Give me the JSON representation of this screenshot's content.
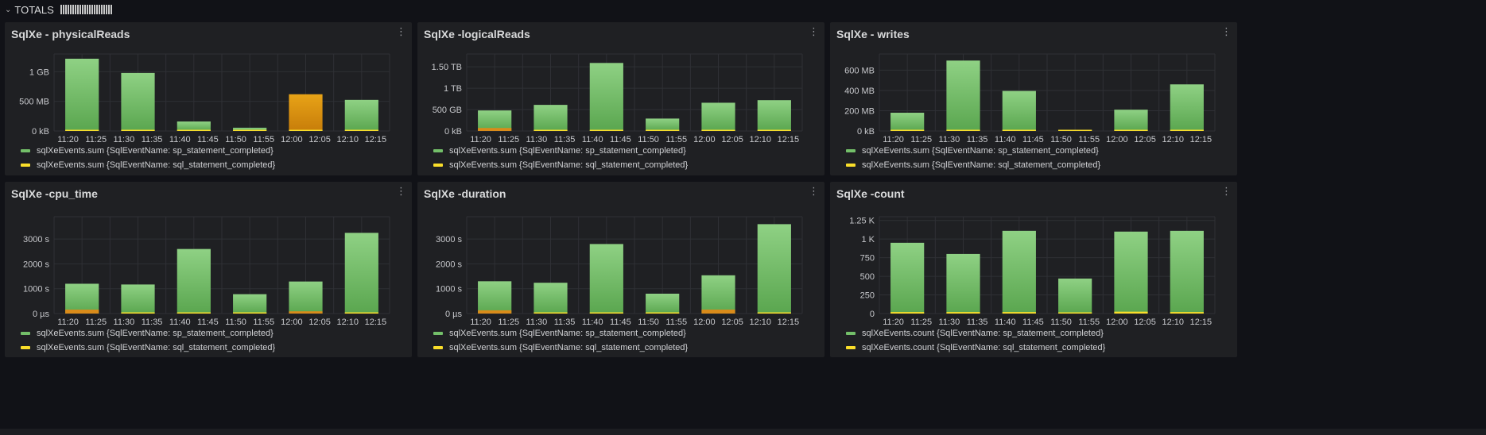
{
  "row": {
    "title": "TOTALS"
  },
  "colors": {
    "sp": "#73bf69",
    "sql": "#fade2a",
    "highlight": "#e8a317"
  },
  "panels": [
    {
      "title": "SqlXe - physicalReads",
      "ytick_labels": [
        "0 kB",
        "500 MB",
        "1 GB"
      ],
      "ytick_values": [
        0,
        500,
        1000
      ],
      "ymax": 1300,
      "xtick_labels": [
        "11:20",
        "11:25",
        "11:30",
        "11:35",
        "11:40",
        "11:45",
        "11:50",
        "11:55",
        "12:00",
        "12:05",
        "12:10",
        "12:15"
      ],
      "bars": [
        {
          "sp": 1220,
          "sql": 10
        },
        {
          "sp": 980,
          "sql": 10
        },
        {
          "sp": 160,
          "sql": 5
        },
        {
          "sp": 55,
          "sql": 3
        },
        {
          "sp": 620,
          "sql": 8,
          "highlight": true
        },
        {
          "sp": 525,
          "sql": 8
        }
      ],
      "legend": [
        {
          "label": "sqlXeEvents.sum {SqlEventName: sp_statement_completed}",
          "color": "#73bf69"
        },
        {
          "label": "sqlXeEvents.sum {SqlEventName: sql_statement_completed}",
          "color": "#fade2a"
        }
      ]
    },
    {
      "title": "SqlXe -logicalReads",
      "ytick_labels": [
        "0 kB",
        "500 GB",
        "1 TB",
        "1.50 TB"
      ],
      "ytick_values": [
        0,
        500,
        1000,
        1500
      ],
      "ymax": 1800,
      "xtick_labels": [
        "11:20",
        "11:25",
        "11:30",
        "11:35",
        "11:40",
        "11:45",
        "11:50",
        "11:55",
        "12:00",
        "12:05",
        "12:10",
        "12:15"
      ],
      "bars": [
        {
          "sp": 480,
          "sql": 70
        },
        {
          "sp": 610,
          "sql": 10
        },
        {
          "sp": 1590,
          "sql": 10
        },
        {
          "sp": 290,
          "sql": 5
        },
        {
          "sp": 660,
          "sql": 25
        },
        {
          "sp": 720,
          "sql": 10
        }
      ],
      "legend": [
        {
          "label": "sqlXeEvents.sum {SqlEventName: sp_statement_completed}",
          "color": "#73bf69"
        },
        {
          "label": "sqlXeEvents.sum {SqlEventName: sql_statement_completed}",
          "color": "#fade2a"
        }
      ]
    },
    {
      "title": "SqlXe - writes",
      "ytick_labels": [
        "0 kB",
        "200 MB",
        "400 MB",
        "600 MB"
      ],
      "ytick_values": [
        0,
        200,
        400,
        600
      ],
      "ymax": 760,
      "xtick_labels": [
        "11:20",
        "11:25",
        "11:30",
        "11:35",
        "11:40",
        "11:45",
        "11:50",
        "11:55",
        "12:00",
        "12:05",
        "12:10",
        "12:15"
      ],
      "bars": [
        {
          "sp": 180,
          "sql": 12
        },
        {
          "sp": 695,
          "sql": 12
        },
        {
          "sp": 395,
          "sql": 12
        },
        {
          "sp": 10,
          "sql": 10
        },
        {
          "sp": 210,
          "sql": 10
        },
        {
          "sp": 460,
          "sql": 12
        }
      ],
      "legend": [
        {
          "label": "sqlXeEvents.sum {SqlEventName: sp_statement_completed}",
          "color": "#73bf69"
        },
        {
          "label": "sqlXeEvents.sum {SqlEventName: sql_statement_completed}",
          "color": "#fade2a"
        }
      ]
    },
    {
      "title": "SqlXe -cpu_time",
      "ytick_labels": [
        "0 µs",
        "1000 s",
        "2000 s",
        "3000 s"
      ],
      "ytick_values": [
        0,
        1000,
        2000,
        3000
      ],
      "ymax": 3900,
      "xtick_labels": [
        "11:20",
        "11:25",
        "11:30",
        "11:35",
        "11:40",
        "11:45",
        "11:50",
        "11:55",
        "12:00",
        "12:05",
        "12:10",
        "12:15"
      ],
      "bars": [
        {
          "sp": 1200,
          "sql": 160
        },
        {
          "sp": 1170,
          "sql": 40
        },
        {
          "sp": 2600,
          "sql": 30
        },
        {
          "sp": 780,
          "sql": 20
        },
        {
          "sp": 1290,
          "sql": 90
        },
        {
          "sp": 3250,
          "sql": 30
        }
      ],
      "legend": [
        {
          "label": "sqlXeEvents.sum {SqlEventName: sp_statement_completed}",
          "color": "#73bf69"
        },
        {
          "label": "sqlXeEvents.sum {SqlEventName: sql_statement_completed}",
          "color": "#fade2a"
        }
      ]
    },
    {
      "title": "SqlXe -duration",
      "ytick_labels": [
        "0 µs",
        "1000 s",
        "2000 s",
        "3000 s"
      ],
      "ytick_values": [
        0,
        1000,
        2000,
        3000
      ],
      "ymax": 3900,
      "xtick_labels": [
        "11:20",
        "11:25",
        "11:30",
        "11:35",
        "11:40",
        "11:45",
        "11:50",
        "11:55",
        "12:00",
        "12:05",
        "12:10",
        "12:15"
      ],
      "bars": [
        {
          "sp": 1300,
          "sql": 130
        },
        {
          "sp": 1240,
          "sql": 40
        },
        {
          "sp": 2800,
          "sql": 30
        },
        {
          "sp": 800,
          "sql": 20
        },
        {
          "sp": 1540,
          "sql": 160
        },
        {
          "sp": 3600,
          "sql": 40
        }
      ],
      "legend": [
        {
          "label": "sqlXeEvents.sum {SqlEventName: sp_statement_completed}",
          "color": "#73bf69"
        },
        {
          "label": "sqlXeEvents.sum {SqlEventName: sql_statement_completed}",
          "color": "#fade2a"
        }
      ]
    },
    {
      "title": "SqlXe -count",
      "ytick_labels": [
        "0",
        "250",
        "500",
        "750",
        "1 K",
        "1.25 K"
      ],
      "ytick_values": [
        0,
        250,
        500,
        750,
        1000,
        1250
      ],
      "ymax": 1300,
      "xtick_labels": [
        "11:20",
        "11:25",
        "11:30",
        "11:35",
        "11:40",
        "11:45",
        "11:50",
        "11:55",
        "12:00",
        "12:05",
        "12:10",
        "12:15"
      ],
      "bars": [
        {
          "sp": 950,
          "sql": 20
        },
        {
          "sp": 800,
          "sql": 20
        },
        {
          "sp": 1110,
          "sql": 20
        },
        {
          "sp": 470,
          "sql": 10
        },
        {
          "sp": 1100,
          "sql": 25
        },
        {
          "sp": 1110,
          "sql": 20
        }
      ],
      "legend": [
        {
          "label": "sqlXeEvents.count {SqlEventName: sp_statement_completed}",
          "color": "#73bf69"
        },
        {
          "label": "sqlXeEvents.count {SqlEventName: sql_statement_completed}",
          "color": "#fade2a"
        }
      ]
    }
  ]
}
